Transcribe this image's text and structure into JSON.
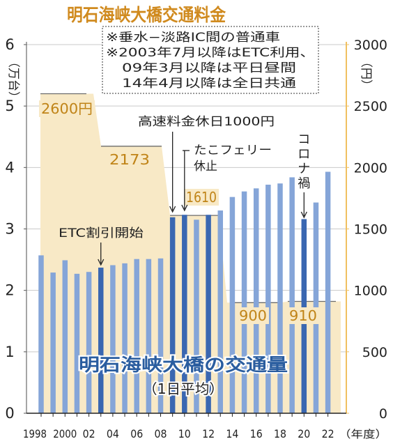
{
  "chart_data": {
    "type": "bar",
    "title": "明石海峡大橋交通料金",
    "note_lines": [
      "※垂水−淡路IC間の普通車",
      "※2003年7月以降はETC利用、",
      "09年3月以降は平日昼間",
      "14年4月以降は全日共通"
    ],
    "traffic_title": "明石海峡大橋の交通量",
    "traffic_subtitle": "（1日平均）",
    "left_axis": {
      "unit_label": "（万台）",
      "ylim": [
        0,
        6
      ],
      "ticks": [
        "0",
        "1",
        "2",
        "3",
        "4",
        "5",
        "6"
      ]
    },
    "right_axis": {
      "unit_label": "（円）",
      "ylim": [
        0,
        3000
      ],
      "ticks": [
        "0",
        "500",
        "1000",
        "1500",
        "2000",
        "2500",
        "3000"
      ]
    },
    "x_unit_label": "（年度）",
    "x_tick_labels": [
      "1998",
      "2000",
      "02",
      "04",
      "06",
      "08",
      "10",
      "12",
      "14",
      "16",
      "18",
      "20",
      "22"
    ],
    "x": [
      1998,
      1999,
      2000,
      2001,
      2002,
      2003,
      2004,
      2005,
      2006,
      2007,
      2008,
      2009,
      2010,
      2011,
      2012,
      2013,
      2014,
      2015,
      2016,
      2017,
      2018,
      2019,
      2020,
      2021,
      2022
    ],
    "series": [
      {
        "name": "明石海峡大橋の交通量",
        "values": [
          2.57,
          2.29,
          2.49,
          2.27,
          2.3,
          2.37,
          2.41,
          2.44,
          2.51,
          2.51,
          2.52,
          3.19,
          3.23,
          3.15,
          3.23,
          3.3,
          3.52,
          3.61,
          3.66,
          3.72,
          3.74,
          3.84,
          3.16,
          3.43,
          3.93
        ],
        "highlighted_years": [
          2003,
          2009,
          2010,
          2012,
          2020
        ]
      }
    ],
    "toll_steps": [
      {
        "label": "2600円",
        "from": 1998,
        "to": 2003.5,
        "value": 2600
      },
      {
        "label": "2173",
        "from": 2003.5,
        "to": 2008.9,
        "value": 2173
      },
      {
        "label": "1610",
        "from": 2008.9,
        "to": 2013.9,
        "value": 1610
      },
      {
        "label": "900",
        "from": 2013.9,
        "to": 2019.5,
        "value": 900
      },
      {
        "label": "910",
        "from": 2019.5,
        "to": 2023,
        "value": 910
      }
    ],
    "annotations": [
      {
        "text": "ETC割引開始",
        "year": 2003
      },
      {
        "text": "高速料金休日1000円",
        "year": 2009
      },
      {
        "text": "たこフェリー",
        "year": 2010
      },
      {
        "text": "休止",
        "year": 2010
      },
      {
        "text": "コロナ禍",
        "year": 2020
      }
    ],
    "colors": {
      "toll_fill": "#f8e9c6",
      "toll_line": "#6b6b6b",
      "bar": "#85a5d8",
      "bar_highlight": "#3a67b1",
      "toll_text": "#c08418",
      "traffic_text": "#2a5d9f",
      "right_axis": "#f0c060"
    },
    "grid": true
  }
}
